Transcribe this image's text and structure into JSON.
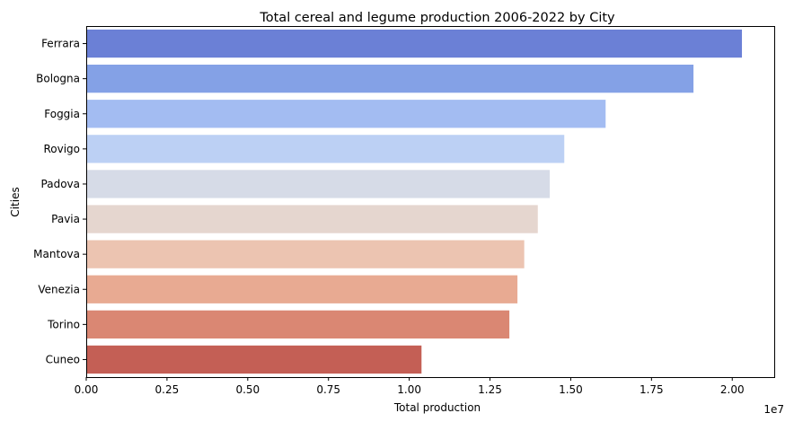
{
  "chart_data": {
    "type": "bar",
    "orientation": "horizontal",
    "title": "Total cereal and legume production 2006-2022 by City",
    "xlabel": "Total production",
    "ylabel": "Cities",
    "x_offset_label": "1e7",
    "xlim": [
      0,
      21300000
    ],
    "x_ticks": [
      0,
      2500000,
      5000000,
      7500000,
      10000000,
      12500000,
      15000000,
      17500000,
      20000000
    ],
    "x_tick_labels": [
      "0.00",
      "0.25",
      "0.50",
      "0.75",
      "1.00",
      "1.25",
      "1.50",
      "1.75",
      "2.00"
    ],
    "categories": [
      "Ferrara",
      "Bologna",
      "Foggia",
      "Rovigo",
      "Padova",
      "Pavia",
      "Mantova",
      "Venezia",
      "Torino",
      "Cuneo"
    ],
    "values": [
      20300000,
      18800000,
      16080000,
      14800000,
      14350000,
      13980000,
      13560000,
      13350000,
      13100000,
      10380000
    ],
    "colors": [
      "#6b80d6",
      "#84a1e6",
      "#a3bcf2",
      "#bcd0f4",
      "#d6dbe7",
      "#e5d6cf",
      "#ecc4b1",
      "#e8aa92",
      "#da8773",
      "#c45f55"
    ],
    "grid": false,
    "legend": "none"
  }
}
